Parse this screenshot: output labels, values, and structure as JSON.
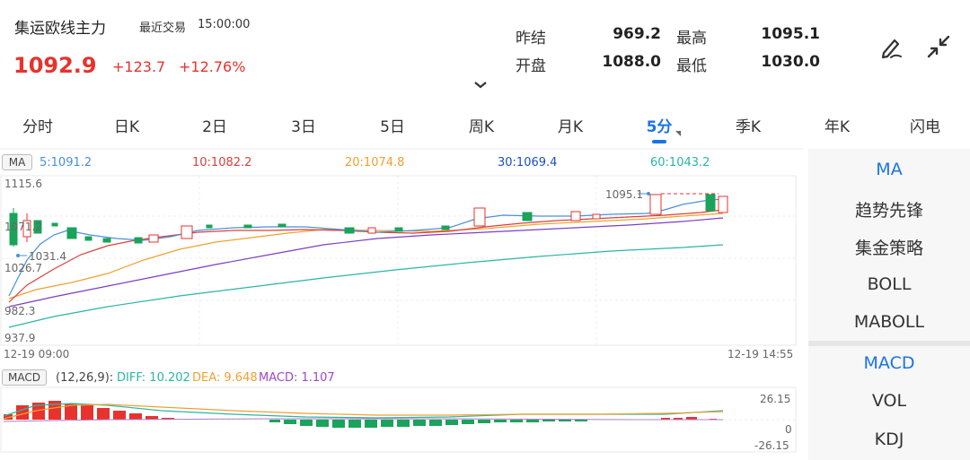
{
  "header": {
    "title": "集运欧线主力",
    "trade_label": "最近交易",
    "trade_time": "15:00:00",
    "price": "1092.9",
    "change": "+123.7",
    "change_pct": "+12.76%"
  },
  "quote": {
    "prev_settle_label": "昨结",
    "prev_settle": "969.2",
    "high_label": "最高",
    "high": "1095.1",
    "open_label": "开盘",
    "open": "1088.0",
    "low_label": "最低",
    "low": "1030.0"
  },
  "icons": {
    "draw": "pen-draw-icon",
    "collapse": "collapse-arrows-icon"
  },
  "tabs": [
    "分时",
    "日K",
    "2日",
    "3日",
    "5日",
    "周K",
    "月K",
    "5分",
    "季K",
    "年K",
    "闪电"
  ],
  "active_tab": "5分",
  "ma_legend": {
    "tag": "MA",
    "ma5": "5:1091.2",
    "ma10": "10:1082.2",
    "ma20": "20:1074.8",
    "ma30": "30:1069.4",
    "ma60": "60:1043.2"
  },
  "macd_legend": {
    "tag": "MACD",
    "params": "(12,26,9):",
    "diff": "DIFF: 10.202",
    "dea": "DEA: 9.648",
    "macd": "MACD: 1.107"
  },
  "axis": {
    "y_top": "1115.6",
    "y_bottom": "937.9",
    "y_mid1": "1026.7",
    "y_mid2": "982.3",
    "y_left_cur": "1071.2",
    "low_mark": "1031.4",
    "high_mark": "1095.1",
    "time_start": "12-19 09:00",
    "time_end": "12-19 14:55",
    "macd_top": "26.15",
    "macd_zero": "0",
    "macd_bottom": "-26.15"
  },
  "colors": {
    "up": "#e8322d",
    "down": "#1aa35a",
    "ma5": "#4a90d9",
    "ma10": "#d9403a",
    "ma20": "#f0a030",
    "ma30": "#7b3fc4",
    "ma60": "#2bb5a6",
    "accent": "#1a73e8"
  },
  "side_panel": {
    "main_indicators": [
      "MA",
      "趋势先锋",
      "集金策略",
      "BOLL",
      "MABOLL"
    ],
    "sub_indicators": [
      "MACD",
      "VOL",
      "KDJ"
    ],
    "active_main": "MA",
    "active_sub": "MACD"
  }
}
